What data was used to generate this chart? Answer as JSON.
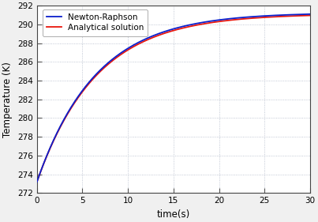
{
  "title": "",
  "xlabel": "time(s)",
  "ylabel": "Temperature (K)",
  "xlim": [
    0,
    30
  ],
  "ylim": [
    272,
    292
  ],
  "yticks": [
    272,
    274,
    276,
    278,
    280,
    282,
    284,
    286,
    288,
    290,
    292
  ],
  "xticks": [
    0,
    5,
    10,
    15,
    20,
    25,
    30
  ],
  "T_inf": 291.15,
  "T0": 273.15,
  "tau": 6.5,
  "analytical_color": "#e8160c",
  "newton_color": "#0b1fcc",
  "legend_labels": [
    "Analytical solution",
    "Newton-Raphson"
  ],
  "linewidth": 1.3,
  "background_color": "#ffffff",
  "grid_color": "#b0b8c8",
  "axes_bg_color": "#ffffff",
  "figure_facecolor": "#f0f0f0"
}
